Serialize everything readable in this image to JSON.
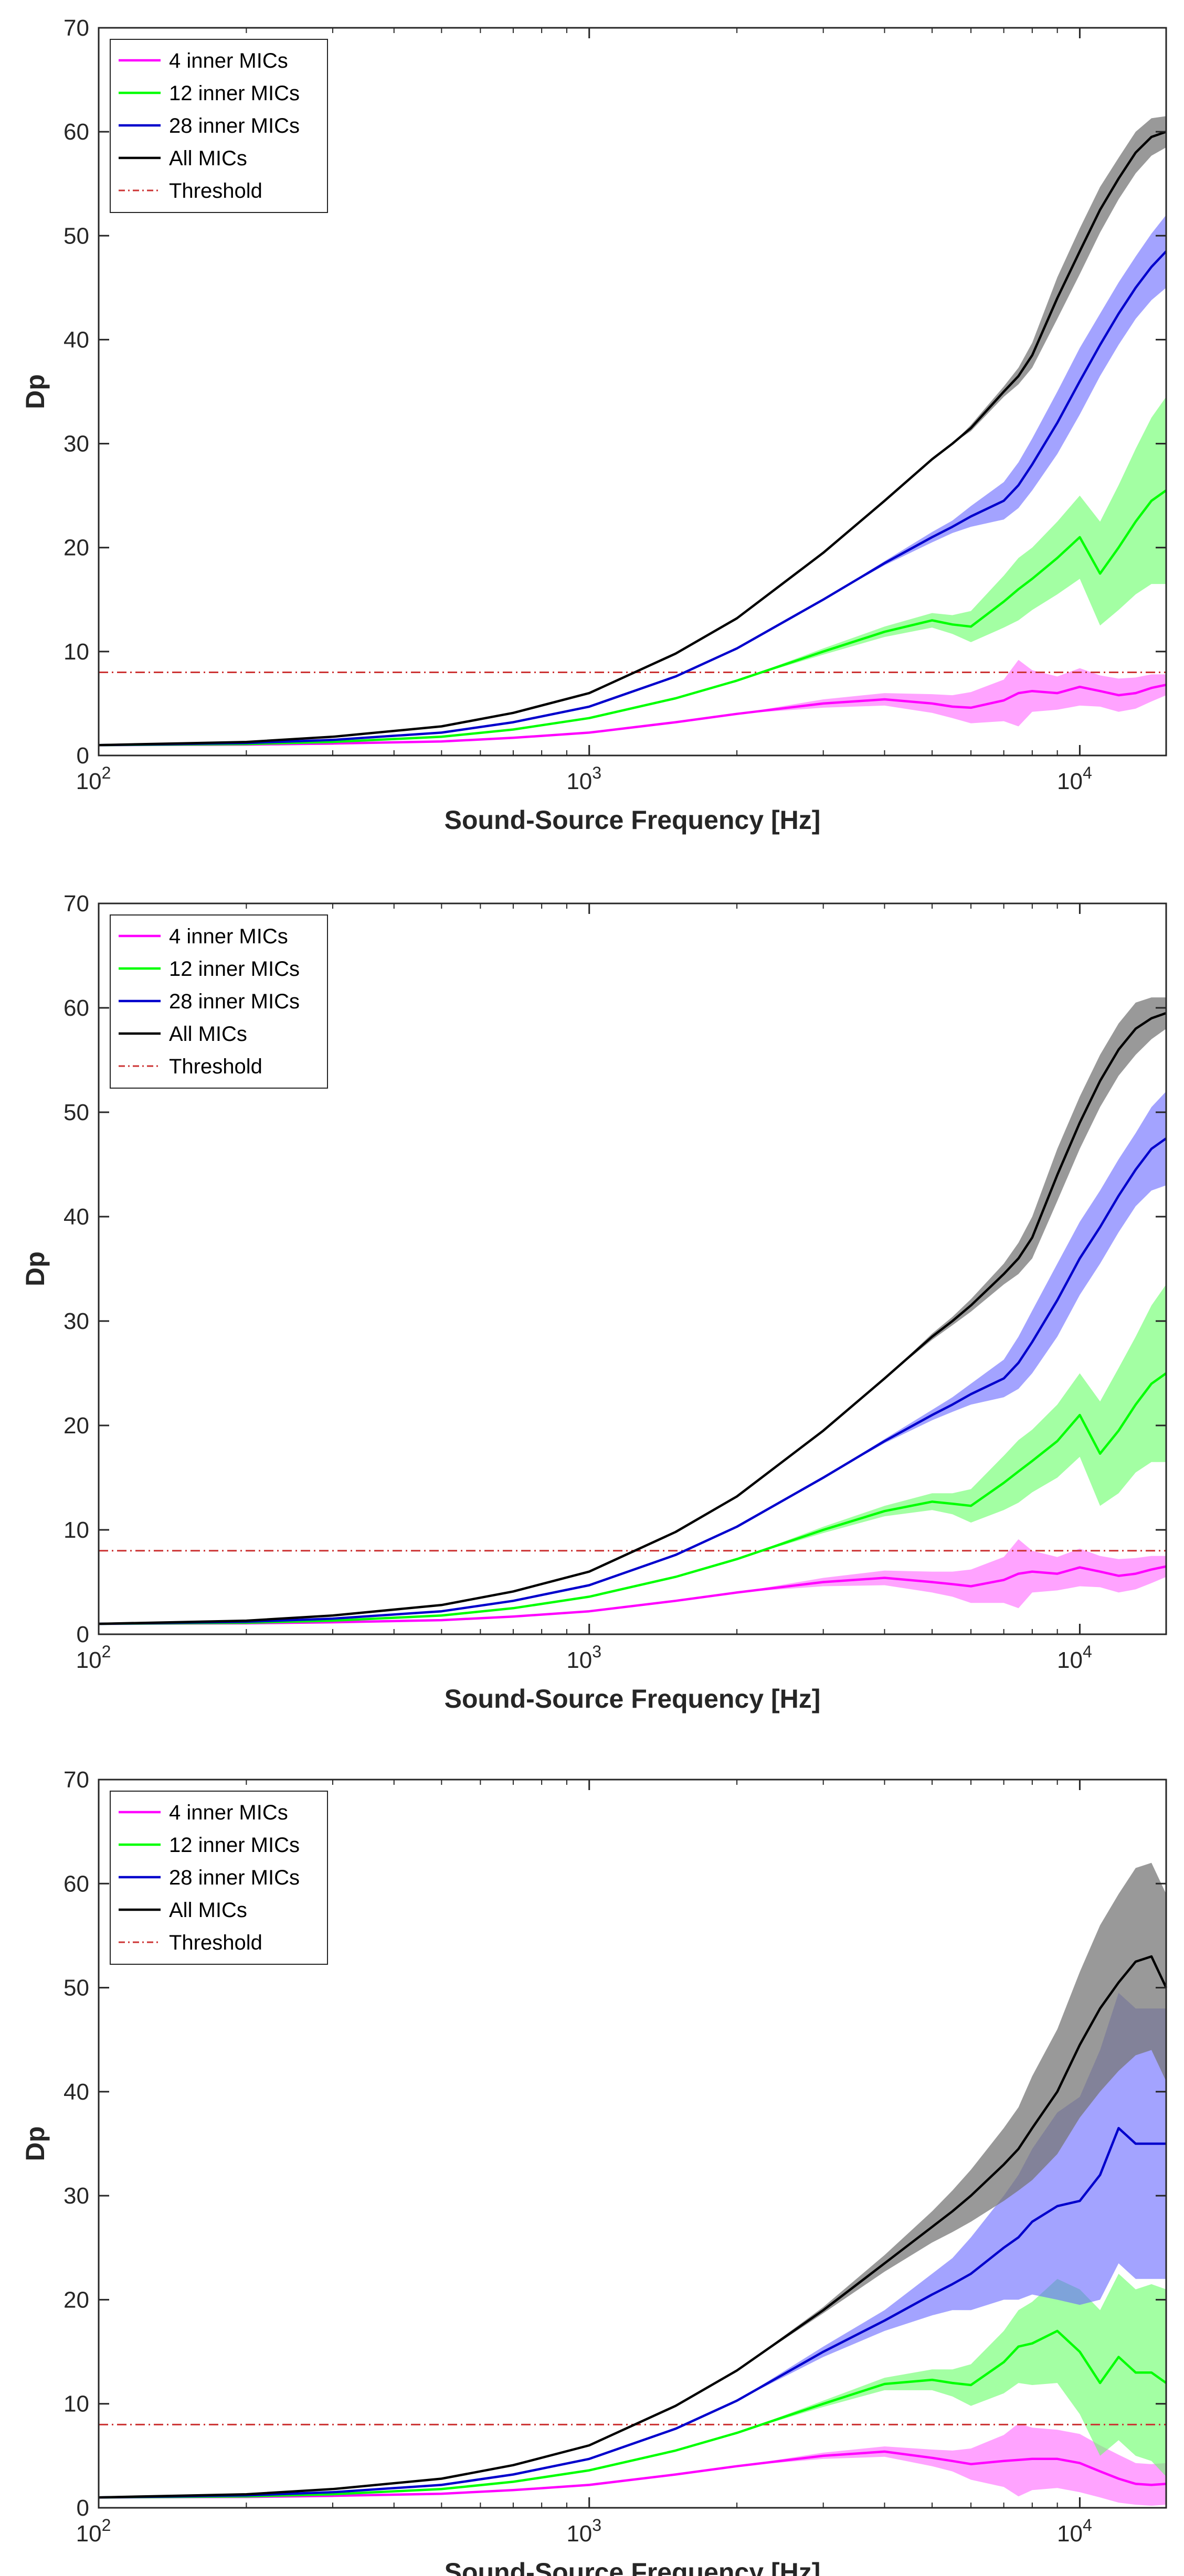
{
  "colors": {
    "inner4": "#ff00ff",
    "inner12": "#00ff00",
    "inner28": "#0000cc",
    "all": "#000000",
    "threshold": "#cc3333",
    "band4": "#ff66ff",
    "band12": "#66ff66",
    "band28": "#6666ff",
    "bandAll": "#777777"
  },
  "chart_data": [
    {
      "type": "line",
      "title": "",
      "xlabel": "Sound-Source Frequency [Hz]",
      "ylabel": "Dp",
      "xscale": "log",
      "xlim": [
        100,
        15000
      ],
      "ylim": [
        0,
        70
      ],
      "yticks": [
        0,
        10,
        20,
        30,
        40,
        50,
        60,
        70
      ],
      "xticks": [
        {
          "value": 100,
          "base": "10",
          "exp": "2"
        },
        {
          "value": 1000,
          "base": "10",
          "exp": "3"
        },
        {
          "value": 10000,
          "base": "10",
          "exp": "4"
        }
      ],
      "legend_position": "top-left",
      "legend": [
        "4 inner MICs",
        "12 inner MICs",
        "28 inner MICs",
        "All MICs",
        "Threshold"
      ],
      "threshold": 8,
      "x": [
        100,
        200,
        300,
        500,
        700,
        1000,
        1500,
        2000,
        3000,
        4000,
        5000,
        5500,
        6000,
        7000,
        7500,
        8000,
        9000,
        10000,
        11000,
        12000,
        13000,
        14000,
        15000
      ],
      "series": [
        {
          "name": "4 inner MICs",
          "key": "inner4",
          "values": [
            1.0,
            1.05,
            1.15,
            1.35,
            1.7,
            2.2,
            3.2,
            4.0,
            5.0,
            5.4,
            5.0,
            4.7,
            4.6,
            5.3,
            6.0,
            6.2,
            6.0,
            6.6,
            6.2,
            5.8,
            6.0,
            6.5,
            6.8
          ],
          "spread": [
            0,
            0,
            0,
            0,
            0,
            0,
            0,
            0,
            0.4,
            0.6,
            0.9,
            1.1,
            1.5,
            2.0,
            3.2,
            2.0,
            1.6,
            1.8,
            1.5,
            1.6,
            1.5,
            1.3,
            1.0
          ]
        },
        {
          "name": "12 inner MICs",
          "key": "inner12",
          "values": [
            1.0,
            1.1,
            1.3,
            1.8,
            2.5,
            3.6,
            5.5,
            7.2,
            10.0,
            11.9,
            13.0,
            12.6,
            12.4,
            14.8,
            16.0,
            17.0,
            19.0,
            21.0,
            17.5,
            20.0,
            22.5,
            24.5,
            25.5
          ],
          "spread": [
            0,
            0,
            0,
            0,
            0,
            0,
            0,
            0,
            0.3,
            0.5,
            0.7,
            0.9,
            1.5,
            2.5,
            3.0,
            3.0,
            3.5,
            4.0,
            5.0,
            6.0,
            7.0,
            8.0,
            9.0
          ]
        },
        {
          "name": "28 inner MICs",
          "key": "inner28",
          "values": [
            1.0,
            1.2,
            1.5,
            2.2,
            3.2,
            4.7,
            7.6,
            10.3,
            15.0,
            18.5,
            21.0,
            22.0,
            23.0,
            24.5,
            26.0,
            28.0,
            32.0,
            36.0,
            39.5,
            42.5,
            45.0,
            47.0,
            48.5
          ],
          "spread": [
            0,
            0,
            0,
            0,
            0,
            0,
            0,
            0,
            0,
            0.2,
            0.5,
            0.6,
            1.0,
            1.8,
            2.2,
            2.5,
            3.0,
            3.2,
            3.0,
            3.0,
            3.0,
            3.2,
            3.5
          ]
        },
        {
          "name": "All MICs",
          "key": "all",
          "values": [
            1.0,
            1.3,
            1.8,
            2.8,
            4.1,
            6.0,
            9.8,
            13.2,
            19.5,
            24.5,
            28.5,
            30.0,
            31.5,
            35.0,
            36.5,
            38.5,
            44.0,
            48.5,
            52.5,
            55.5,
            58.0,
            59.5,
            60.0
          ],
          "spread": [
            0,
            0,
            0,
            0,
            0,
            0,
            0,
            0,
            0,
            0,
            0,
            0,
            0.3,
            0.5,
            0.8,
            1.2,
            2.0,
            2.2,
            2.2,
            2.0,
            2.0,
            1.8,
            1.5
          ]
        }
      ]
    },
    {
      "type": "line",
      "title": "",
      "xlabel": "Sound-Source Frequency [Hz]",
      "ylabel": "Dp",
      "xscale": "log",
      "xlim": [
        100,
        15000
      ],
      "ylim": [
        0,
        70
      ],
      "yticks": [
        0,
        10,
        20,
        30,
        40,
        50,
        60,
        70
      ],
      "xticks": [
        {
          "value": 100,
          "base": "10",
          "exp": "2"
        },
        {
          "value": 1000,
          "base": "10",
          "exp": "3"
        },
        {
          "value": 10000,
          "base": "10",
          "exp": "4"
        }
      ],
      "legend_position": "top-left",
      "legend": [
        "4 inner MICs",
        "12 inner MICs",
        "28 inner MICs",
        "All MICs",
        "Threshold"
      ],
      "threshold": 8,
      "x": [
        100,
        200,
        300,
        500,
        700,
        1000,
        1500,
        2000,
        3000,
        4000,
        5000,
        5500,
        6000,
        7000,
        7500,
        8000,
        9000,
        10000,
        11000,
        12000,
        13000,
        14000,
        15000
      ],
      "series": [
        {
          "name": "4 inner MICs",
          "key": "inner4",
          "values": [
            1.0,
            1.05,
            1.15,
            1.35,
            1.7,
            2.2,
            3.2,
            4.0,
            5.0,
            5.4,
            5.0,
            4.8,
            4.6,
            5.2,
            5.8,
            6.0,
            5.8,
            6.4,
            6.0,
            5.6,
            5.8,
            6.2,
            6.5
          ],
          "spread": [
            0,
            0,
            0,
            0,
            0,
            0,
            0,
            0,
            0.4,
            0.7,
            1.0,
            1.2,
            1.6,
            2.2,
            3.3,
            2.0,
            1.6,
            1.8,
            1.5,
            1.6,
            1.5,
            1.3,
            1.0
          ]
        },
        {
          "name": "12 inner MICs",
          "key": "inner12",
          "values": [
            1.0,
            1.1,
            1.3,
            1.8,
            2.5,
            3.6,
            5.5,
            7.2,
            10.0,
            11.8,
            12.7,
            12.5,
            12.3,
            14.5,
            15.6,
            16.6,
            18.5,
            21.0,
            17.3,
            19.5,
            22.0,
            24.0,
            25.0
          ],
          "spread": [
            0,
            0,
            0,
            0,
            0,
            0,
            0,
            0,
            0.3,
            0.5,
            0.8,
            1.0,
            1.6,
            2.6,
            3.0,
            3.0,
            3.5,
            4.0,
            5.0,
            6.0,
            6.5,
            7.5,
            8.5
          ]
        },
        {
          "name": "28 inner MICs",
          "key": "inner28",
          "values": [
            1.0,
            1.2,
            1.5,
            2.2,
            3.2,
            4.7,
            7.6,
            10.3,
            15.0,
            18.5,
            21.0,
            22.0,
            23.0,
            24.5,
            26.0,
            28.0,
            32.0,
            36.0,
            39.0,
            42.0,
            44.5,
            46.5,
            47.5
          ],
          "spread": [
            0,
            0,
            0,
            0,
            0,
            0,
            0,
            0,
            0,
            0.2,
            0.5,
            0.7,
            1.0,
            1.8,
            2.5,
            3.0,
            3.5,
            3.5,
            3.5,
            3.5,
            3.5,
            4.0,
            4.5
          ]
        },
        {
          "name": "All MICs",
          "key": "all",
          "values": [
            1.0,
            1.3,
            1.8,
            2.8,
            4.1,
            6.0,
            9.8,
            13.2,
            19.5,
            24.5,
            28.5,
            30.0,
            31.5,
            34.5,
            36.0,
            38.0,
            44.0,
            49.0,
            53.0,
            56.0,
            58.0,
            59.0,
            59.5
          ],
          "spread": [
            0,
            0,
            0,
            0,
            0,
            0,
            0,
            0,
            0,
            0,
            0.3,
            0.4,
            0.6,
            1.0,
            1.5,
            2.0,
            2.5,
            2.5,
            2.5,
            2.5,
            2.5,
            2.0,
            1.5
          ]
        }
      ]
    },
    {
      "type": "line",
      "title": "",
      "xlabel": "Sound-Source Frequency [Hz]",
      "ylabel": "Dp",
      "xscale": "log",
      "xlim": [
        100,
        15000
      ],
      "ylim": [
        0,
        70
      ],
      "yticks": [
        0,
        10,
        20,
        30,
        40,
        50,
        60,
        70
      ],
      "xticks": [
        {
          "value": 100,
          "base": "10",
          "exp": "2"
        },
        {
          "value": 1000,
          "base": "10",
          "exp": "3"
        },
        {
          "value": 10000,
          "base": "10",
          "exp": "4"
        }
      ],
      "legend_position": "top-left",
      "legend": [
        "4 inner MICs",
        "12 inner MICs",
        "28 inner MICs",
        "All MICs",
        "Threshold"
      ],
      "threshold": 8,
      "x": [
        100,
        200,
        300,
        500,
        700,
        1000,
        1500,
        2000,
        3000,
        4000,
        5000,
        5500,
        6000,
        7000,
        7500,
        8000,
        9000,
        10000,
        11000,
        12000,
        13000,
        14000,
        15000
      ],
      "series": [
        {
          "name": "4 inner MICs",
          "key": "inner4",
          "values": [
            1.0,
            1.05,
            1.15,
            1.35,
            1.7,
            2.2,
            3.2,
            4.0,
            5.0,
            5.4,
            4.8,
            4.5,
            4.2,
            4.5,
            4.6,
            4.7,
            4.7,
            4.3,
            3.5,
            2.8,
            2.3,
            2.2,
            2.3
          ],
          "spread": [
            0,
            0,
            0,
            0,
            0,
            0,
            0,
            0,
            0.3,
            0.5,
            0.8,
            1.0,
            1.5,
            2.5,
            3.5,
            3.0,
            2.8,
            2.8,
            2.5,
            2.3,
            2.0,
            2.0,
            2.0
          ]
        },
        {
          "name": "12 inner MICs",
          "key": "inner12",
          "values": [
            1.0,
            1.1,
            1.3,
            1.8,
            2.5,
            3.6,
            5.5,
            7.2,
            10.0,
            11.9,
            12.3,
            12.0,
            11.8,
            14.0,
            15.5,
            15.8,
            17.0,
            15.0,
            12.0,
            14.5,
            13.0,
            13.0,
            12.0
          ],
          "spread": [
            0,
            0,
            0,
            0,
            0,
            0,
            0,
            0,
            0.3,
            0.6,
            1.0,
            1.3,
            2.0,
            3.0,
            3.5,
            4.0,
            5.0,
            6.0,
            7.0,
            8.0,
            8.0,
            8.5,
            9.0
          ]
        },
        {
          "name": "28 inner MICs",
          "key": "inner28",
          "values": [
            1.0,
            1.2,
            1.5,
            2.2,
            3.2,
            4.7,
            7.6,
            10.3,
            15.0,
            18.0,
            20.5,
            21.5,
            22.5,
            25.0,
            26.0,
            27.5,
            29.0,
            29.5,
            32.0,
            36.5,
            35.0,
            35.0,
            35.0
          ],
          "spread": [
            0,
            0,
            0,
            0,
            0,
            0,
            0,
            0,
            0.5,
            1.0,
            2.0,
            2.5,
            3.5,
            5.0,
            6.0,
            7.0,
            9.0,
            10.0,
            12.0,
            13.0,
            13.0,
            13.0,
            13.0
          ]
        },
        {
          "name": "All MICs",
          "key": "all",
          "values": [
            1.0,
            1.3,
            1.8,
            2.8,
            4.1,
            6.0,
            9.8,
            13.2,
            19.0,
            23.5,
            27.0,
            28.5,
            30.0,
            33.0,
            34.5,
            36.5,
            40.0,
            44.5,
            48.0,
            50.5,
            52.5,
            53.0,
            50.0
          ],
          "spread": [
            0,
            0,
            0,
            0,
            0,
            0,
            0,
            0,
            0.3,
            0.8,
            1.5,
            2.0,
            2.5,
            3.5,
            4.0,
            5.0,
            6.0,
            7.0,
            8.0,
            8.5,
            9.0,
            9.0,
            9.0
          ]
        }
      ]
    }
  ]
}
